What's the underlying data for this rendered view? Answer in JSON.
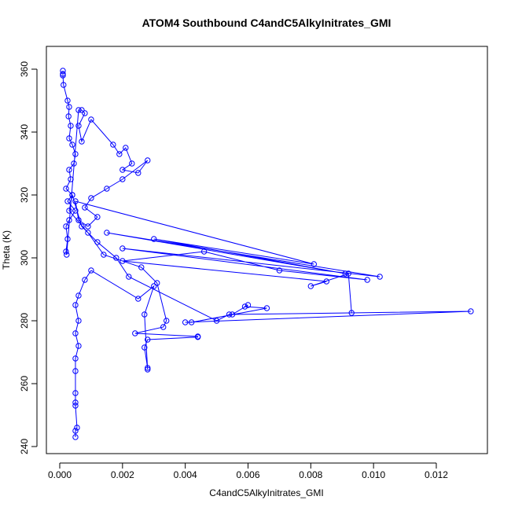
{
  "chart_data": {
    "type": "line",
    "markers": "open-circle",
    "title": "ATOM4 Southbound C4andC5AlkyInitrates_GMI",
    "x_label": "C4andC5AlkyInitrates_GMI",
    "y_label": "Theta (K)",
    "color": "#0000ff",
    "xlim": [
      -0.000426,
      0.013629
    ],
    "ylim": [
      237.75,
      367.25
    ],
    "xticks": [
      {
        "value": 0,
        "label": "0.000"
      },
      {
        "value": 0.002,
        "label": "0.002"
      },
      {
        "value": 0.004,
        "label": "0.004"
      },
      {
        "value": 0.006,
        "label": "0.006"
      },
      {
        "value": 0.008,
        "label": "0.008"
      },
      {
        "value": 0.01,
        "label": "0.010"
      },
      {
        "value": 0.012,
        "label": "0.012"
      }
    ],
    "yticks": [
      240,
      260,
      280,
      300,
      320,
      340,
      360
    ],
    "x": [
      0.0001,
      0.0001,
      0.0001,
      0.00012,
      0.00025,
      0.0003,
      0.00028,
      0.00035,
      0.0003,
      0.0004,
      0.0005,
      0.00045,
      0.0003,
      0.00035,
      0.0002,
      0.0004,
      0.00025,
      0.0005,
      0.0003,
      0.0002,
      0.00025,
      0.0002,
      0.00022,
      0.0006,
      0.0007,
      0.0008,
      0.0006,
      0.0007,
      0.001,
      0.0017,
      0.0019,
      0.0021,
      0.0023,
      0.002,
      0.0025,
      0.0028,
      0.002,
      0.0015,
      0.001,
      0.0008,
      0.0012,
      0.0009,
      0.0006,
      0.0005,
      0.0081,
      0.003,
      0.0091,
      0.0015,
      0.0102,
      0.002,
      0.0098,
      0.007,
      0.0046,
      0.002,
      0.0085,
      0.008,
      0.0092,
      0.0093,
      0.0055,
      0.006,
      0.0059,
      0.0066,
      0.0042,
      0.004,
      0.0131,
      0.0054,
      0.005,
      0.0022,
      0.0018,
      0.0012,
      0.0007,
      0.0004,
      0.0003,
      0.0009,
      0.0014,
      0.0026,
      0.0031,
      0.0034,
      0.0033,
      0.0024,
      0.0044,
      0.0044,
      0.0028,
      0.0027,
      0.0028,
      0.0028,
      0.0027,
      0.003,
      0.0025,
      0.001,
      0.0008,
      0.0006,
      0.0005,
      0.0006,
      0.0005,
      0.0006,
      0.0005,
      0.0005,
      0.0005,
      0.0005,
      0.0005,
      0.00055,
      0.0005,
      0.0005
    ],
    "y": [
      359.5,
      358.5,
      358,
      355,
      350,
      348,
      345,
      342,
      338,
      336,
      333,
      330,
      328,
      325,
      322,
      320,
      318,
      315,
      312,
      310,
      306,
      302,
      301,
      347,
      347,
      346,
      342,
      337,
      344,
      336,
      333,
      335,
      330,
      328,
      327,
      331,
      325,
      322,
      319,
      316,
      313,
      310,
      312,
      318,
      298,
      306,
      295,
      308,
      294,
      303,
      293,
      296,
      302,
      299,
      292.5,
      291,
      295,
      282.5,
      282,
      285,
      284.5,
      284,
      279.5,
      279.5,
      283,
      282,
      280,
      294,
      300,
      305,
      310,
      320,
      315,
      308,
      301,
      297,
      292,
      280,
      278,
      276,
      275,
      274.8,
      274,
      271.5,
      265,
      264.5,
      282,
      291,
      287,
      296,
      293,
      288,
      285,
      280,
      276,
      272,
      268,
      264,
      257,
      254,
      253,
      246,
      245,
      243
    ]
  }
}
